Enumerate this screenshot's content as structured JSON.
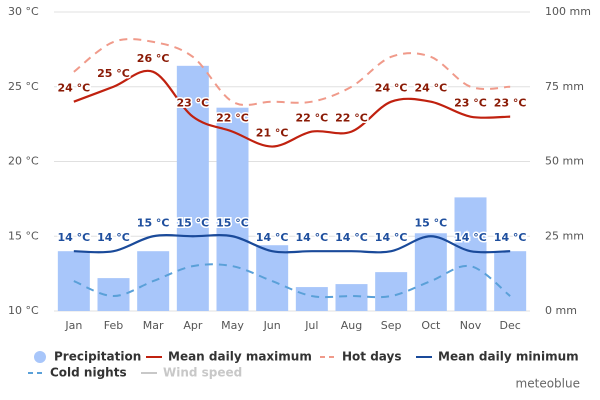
{
  "chart_data": {
    "type": "combo",
    "categories": [
      "Jan",
      "Feb",
      "Mar",
      "Apr",
      "May",
      "Jun",
      "Jul",
      "Aug",
      "Sep",
      "Oct",
      "Nov",
      "Dec"
    ],
    "ylim": [
      10,
      30
    ],
    "yticks": [
      {
        "value": 10,
        "label": "10 °C"
      },
      {
        "value": 15,
        "label": "15 °C"
      },
      {
        "value": 20,
        "label": "20 °C"
      },
      {
        "value": 25,
        "label": "25 °C"
      },
      {
        "value": 30,
        "label": "30 °C"
      }
    ],
    "y2lim": [
      0,
      100
    ],
    "y2ticks": [
      {
        "value": 0,
        "label": "0 mm"
      },
      {
        "value": 25,
        "label": "25 mm"
      },
      {
        "value": 50,
        "label": "50 mm"
      },
      {
        "value": 75,
        "label": "75 mm"
      },
      {
        "value": 100,
        "label": "100 mm"
      }
    ],
    "grid": true,
    "legend": "bottom",
    "credit": "meteoblue",
    "series": [
      {
        "name": "Precipitation",
        "type": "bar",
        "axis": "y2",
        "color": "#a8c6fa",
        "values": [
          20,
          11,
          20,
          82,
          68,
          22,
          8,
          9,
          13,
          26,
          38,
          20
        ]
      },
      {
        "name": "Mean daily maximum",
        "type": "line",
        "color": "#c0210f",
        "values": [
          24,
          25,
          26,
          23,
          22,
          21,
          22,
          22,
          24,
          24,
          23,
          23
        ],
        "value_labels": [
          "24 °C",
          "25 °C",
          "26 °C",
          "23 °C",
          "22 °C",
          "21 °C",
          "22 °C",
          "22 °C",
          "24 °C",
          "24 °C",
          "23 °C",
          "23 °C"
        ],
        "label_color": "#8a1a05"
      },
      {
        "name": "Hot days",
        "type": "line",
        "dash": true,
        "color": "#f09a8a",
        "values": [
          26,
          28,
          28,
          27,
          24,
          24,
          24,
          25,
          27,
          27,
          25,
          25
        ]
      },
      {
        "name": "Mean daily minimum",
        "type": "line",
        "color": "#1a4a9a",
        "values": [
          14,
          14,
          15,
          15,
          15,
          14,
          14,
          14,
          14,
          15,
          14,
          14
        ],
        "value_labels": [
          "14 °C",
          "14 °C",
          "15 °C",
          "15 °C",
          "15 °C",
          "14 °C",
          "14 °C",
          "14 °C",
          "14 °C",
          "15 °C",
          "14 °C",
          "14 °C"
        ],
        "label_color": "#1f4f9e"
      },
      {
        "name": "Cold nights",
        "type": "line",
        "dash": true,
        "color": "#5aa0d8",
        "values": [
          12,
          11,
          12,
          13,
          13,
          12,
          11,
          11,
          11,
          12,
          13,
          11
        ]
      },
      {
        "name": "Wind speed",
        "type": "line",
        "visible": false,
        "color": "#c8c8c8"
      }
    ]
  }
}
